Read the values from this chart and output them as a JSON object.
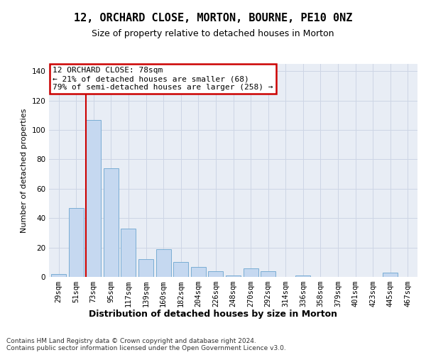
{
  "title1": "12, ORCHARD CLOSE, MORTON, BOURNE, PE10 0NZ",
  "title2": "Size of property relative to detached houses in Morton",
  "xlabel": "Distribution of detached houses by size in Morton",
  "ylabel": "Number of detached properties",
  "categories": [
    "29sqm",
    "51sqm",
    "73sqm",
    "95sqm",
    "117sqm",
    "139sqm",
    "160sqm",
    "182sqm",
    "204sqm",
    "226sqm",
    "248sqm",
    "270sqm",
    "292sqm",
    "314sqm",
    "336sqm",
    "358sqm",
    "379sqm",
    "401sqm",
    "423sqm",
    "445sqm",
    "467sqm"
  ],
  "values": [
    2,
    47,
    107,
    74,
    33,
    12,
    19,
    10,
    7,
    4,
    1,
    6,
    4,
    0,
    1,
    0,
    0,
    0,
    0,
    3,
    0
  ],
  "bar_color": "#c5d8f0",
  "bar_edge_color": "#7aadd4",
  "grid_color": "#cdd5e5",
  "background_color": "#e8edf5",
  "marker_color": "#cc0000",
  "marker_bar_index": 2,
  "annotation_title": "12 ORCHARD CLOSE: 78sqm",
  "annotation_line1": "← 21% of detached houses are smaller (68)",
  "annotation_line2": "79% of semi-detached houses are larger (258) →",
  "annotation_box_color": "#ffffff",
  "annotation_box_edge": "#cc0000",
  "footnote1": "Contains HM Land Registry data © Crown copyright and database right 2024.",
  "footnote2": "Contains public sector information licensed under the Open Government Licence v3.0.",
  "ylim": [
    0,
    145
  ],
  "yticks": [
    0,
    20,
    40,
    60,
    80,
    100,
    120,
    140
  ],
  "title1_fontsize": 11,
  "title2_fontsize": 9,
  "xlabel_fontsize": 9,
  "ylabel_fontsize": 8,
  "tick_fontsize": 7.5,
  "annotation_fontsize": 8,
  "footnote_fontsize": 6.5
}
